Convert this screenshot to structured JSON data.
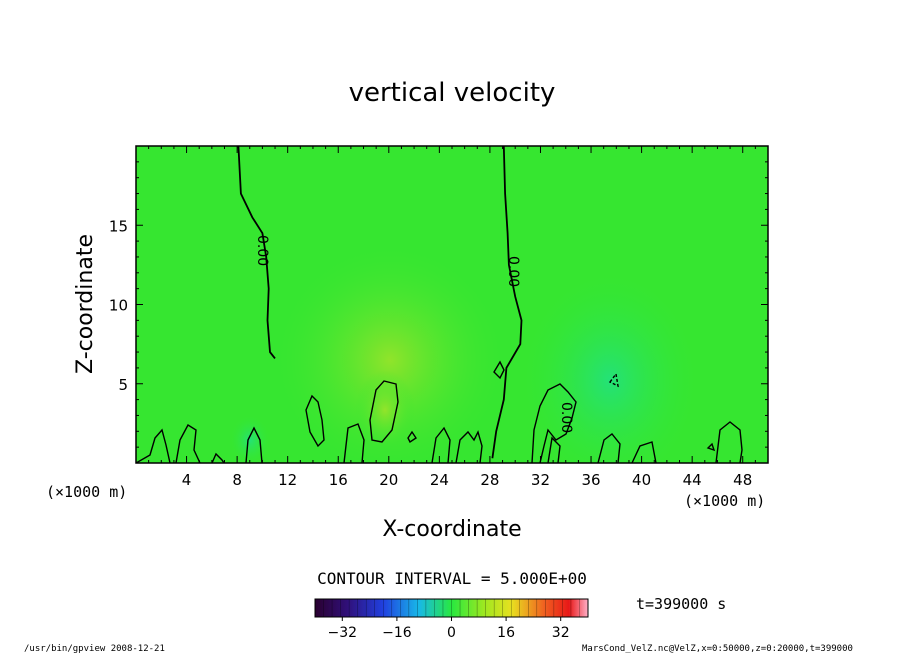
{
  "chart_data": {
    "type": "heatmap",
    "title": "vertical velocity",
    "xlabel": "X-coordinate",
    "ylabel": "Z-coordinate",
    "x_unit": "(×1000 m)",
    "x_unit_right": "(×1000 m)",
    "xlim": [
      0,
      50
    ],
    "ylim": [
      0,
      20
    ],
    "xticks": [
      4,
      8,
      12,
      16,
      20,
      24,
      28,
      32,
      36,
      40,
      44,
      48
    ],
    "yticks": [
      5,
      10,
      15
    ],
    "contour_label": "0.00",
    "contour_interval_text": "CONTOUR INTERVAL = 5.000E+00",
    "time_text": "t=399000 s",
    "colorbar": {
      "range": [
        -40,
        40
      ],
      "ticks": [
        -32,
        -16,
        0,
        16,
        32
      ]
    },
    "contours": [
      {
        "level": 0,
        "points": [
          [
            8.1,
            20
          ],
          [
            8.3,
            17
          ],
          [
            9.2,
            15.5
          ],
          [
            10,
            14.5
          ],
          [
            10.3,
            13
          ],
          [
            10.5,
            11
          ],
          [
            10.4,
            9
          ],
          [
            10.6,
            7
          ],
          [
            11,
            6.6
          ]
        ]
      },
      {
        "level": 0,
        "points": [
          [
            29.1,
            20
          ],
          [
            29.2,
            17
          ],
          [
            29.4,
            14.5
          ],
          [
            29.5,
            12.5
          ],
          [
            30,
            10.5
          ],
          [
            30.5,
            9
          ],
          [
            30.4,
            7.5
          ],
          [
            29.3,
            6
          ],
          [
            29.1,
            4
          ],
          [
            28.5,
            2
          ],
          [
            28.2,
            0.3
          ]
        ]
      }
    ],
    "footer_left": "/usr/bin/gpview   2008-12-21",
    "footer_right": "MarsCond_VelZ.nc@VelZ,x=0:50000,z=0:20000,t=399000"
  }
}
